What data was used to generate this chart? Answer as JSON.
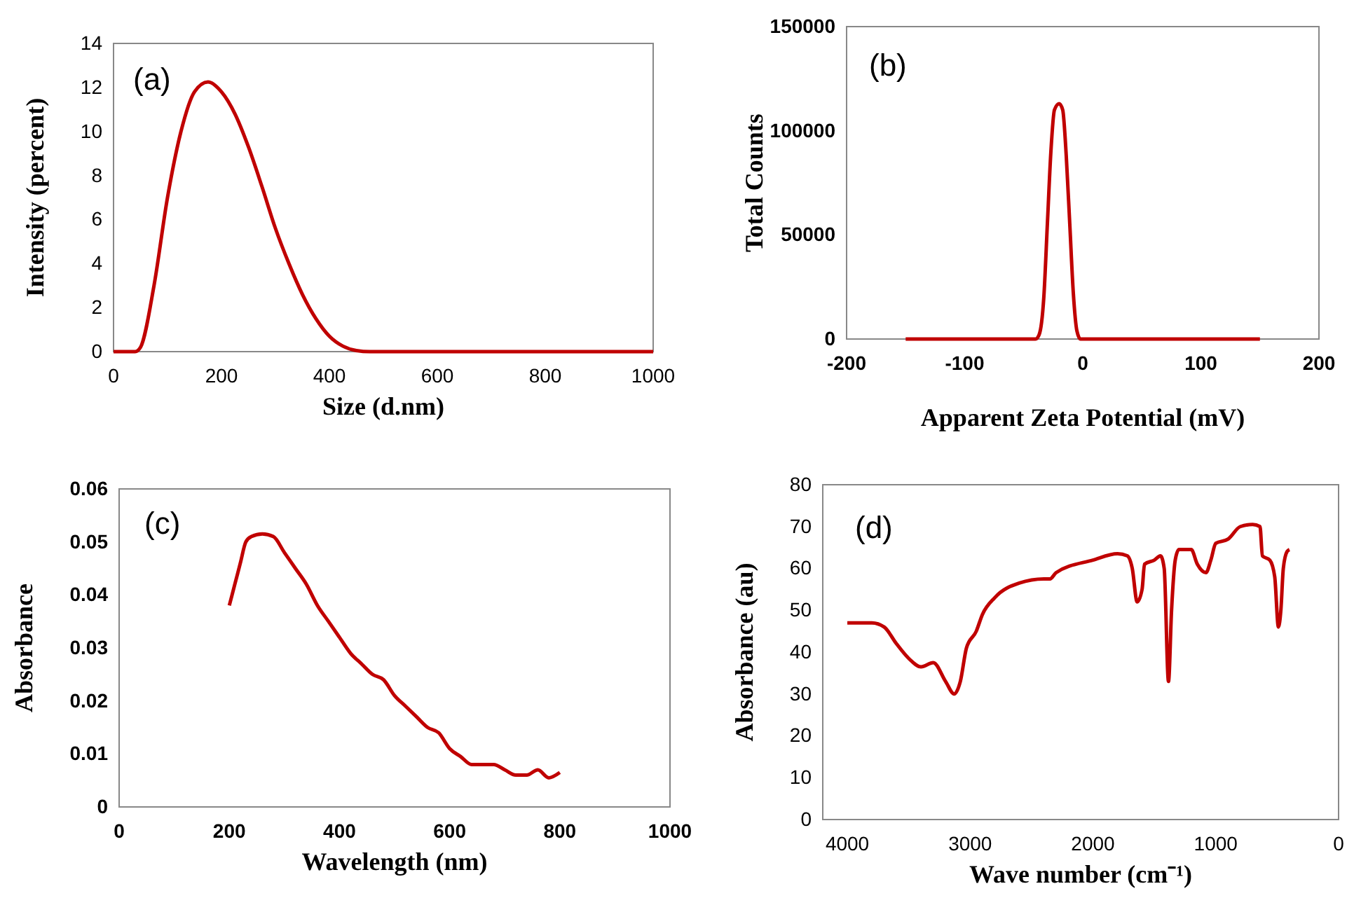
{
  "chart_data": [
    {
      "type": "line",
      "xlabel": "Size (d.nm)",
      "ylabel": "Intensity (percent)",
      "annotations": [
        "(a)"
      ],
      "xlim": [
        0,
        1000
      ],
      "ylim": [
        0,
        14
      ],
      "xticks": [
        0,
        200,
        400,
        600,
        800,
        1000
      ],
      "yticks": [
        0,
        2,
        4,
        6,
        8,
        10,
        12,
        14
      ],
      "series": [
        {
          "color": "#c00000",
          "x": [
            0,
            40,
            50,
            75,
            100,
            125,
            150,
            175,
            200,
            225,
            250,
            275,
            300,
            325,
            350,
            375,
            400,
            425,
            450,
            475,
            600,
            800,
            1000
          ],
          "values": [
            0,
            0,
            0.2,
            3,
            7,
            10,
            11.8,
            12.25,
            11.8,
            10.8,
            9.3,
            7.5,
            5.6,
            4,
            2.6,
            1.5,
            0.7,
            0.25,
            0.05,
            0,
            0,
            0,
            0
          ]
        }
      ]
    },
    {
      "type": "line",
      "xlabel": "Apparent Zeta Potential (mV)",
      "ylabel": "Total Counts",
      "annotations": [
        "(b)"
      ],
      "xlim": [
        -200,
        200
      ],
      "ylim": [
        0,
        150000
      ],
      "xticks": [
        -200,
        -100,
        0,
        100,
        200
      ],
      "yticks": [
        0,
        50000,
        100000,
        150000
      ],
      "series": [
        {
          "color": "#c00000",
          "x": [
            -150,
            -40,
            -37,
            -33,
            -30,
            -27,
            -24,
            -20,
            -17,
            -14,
            -11,
            -8,
            -5,
            -2,
            150
          ],
          "values": [
            0,
            0,
            2000,
            20000,
            55000,
            90000,
            110000,
            113000,
            110000,
            88000,
            55000,
            22000,
            4000,
            0,
            0
          ]
        }
      ]
    },
    {
      "type": "line",
      "xlabel": "Wavelength (nm)",
      "ylabel": "Absorbance",
      "annotations": [
        "(c)"
      ],
      "xlim": [
        0,
        1000
      ],
      "ylim": [
        0,
        0.06
      ],
      "xticks": [
        0,
        200,
        400,
        600,
        800,
        1000
      ],
      "yticks": [
        0,
        0.01,
        0.02,
        0.03,
        0.04,
        0.05,
        0.06
      ],
      "series": [
        {
          "color": "#c00000",
          "x": [
            200,
            210,
            220,
            230,
            240,
            260,
            280,
            300,
            320,
            340,
            360,
            380,
            400,
            420,
            440,
            460,
            480,
            500,
            520,
            540,
            560,
            580,
            600,
            620,
            640,
            660,
            680,
            700,
            720,
            740,
            760,
            780,
            800
          ],
          "values": [
            0.038,
            0.042,
            0.046,
            0.05,
            0.051,
            0.0515,
            0.051,
            0.048,
            0.045,
            0.042,
            0.038,
            0.035,
            0.032,
            0.029,
            0.027,
            0.025,
            0.024,
            0.021,
            0.019,
            0.017,
            0.015,
            0.014,
            0.011,
            0.0095,
            0.008,
            0.008,
            0.008,
            0.007,
            0.006,
            0.006,
            0.007,
            0.0055,
            0.0065
          ]
        }
      ]
    },
    {
      "type": "line",
      "xlabel": "Wave number (cm⁻¹)",
      "ylabel": "Absorbance (au)",
      "annotations": [
        "(d)"
      ],
      "xlim": [
        4200,
        0
      ],
      "ylim": [
        0,
        80
      ],
      "xticks": [
        4000,
        3000,
        2000,
        1000,
        0
      ],
      "yticks": [
        0,
        10,
        20,
        30,
        40,
        50,
        60,
        70,
        80
      ],
      "series": [
        {
          "color": "#c00000",
          "x": [
            4000,
            3800,
            3700,
            3600,
            3500,
            3400,
            3300,
            3200,
            3130,
            3080,
            3030,
            2950,
            2900,
            2800,
            2600,
            2400,
            2350,
            2300,
            2000,
            1800,
            1720,
            1680,
            1640,
            1600,
            1580,
            1500,
            1450,
            1420,
            1385,
            1360,
            1330,
            1300,
            1200,
            1150,
            1080,
            1040,
            1000,
            900,
            800,
            700,
            640,
            620,
            560,
            520,
            490,
            470,
            450,
            420,
            400
          ],
          "values": [
            47,
            47,
            46,
            42,
            38.5,
            36.5,
            37.5,
            33,
            30,
            33,
            41,
            45,
            49,
            53,
            56.5,
            57.5,
            57.5,
            59,
            62,
            63.5,
            63,
            60,
            52,
            55,
            61,
            62,
            63,
            60,
            33,
            50,
            62,
            64.5,
            64.5,
            61,
            59,
            62,
            66,
            67,
            70,
            70.5,
            70,
            63,
            62,
            58,
            46,
            50,
            60,
            64,
            64.5
          ]
        }
      ]
    }
  ]
}
